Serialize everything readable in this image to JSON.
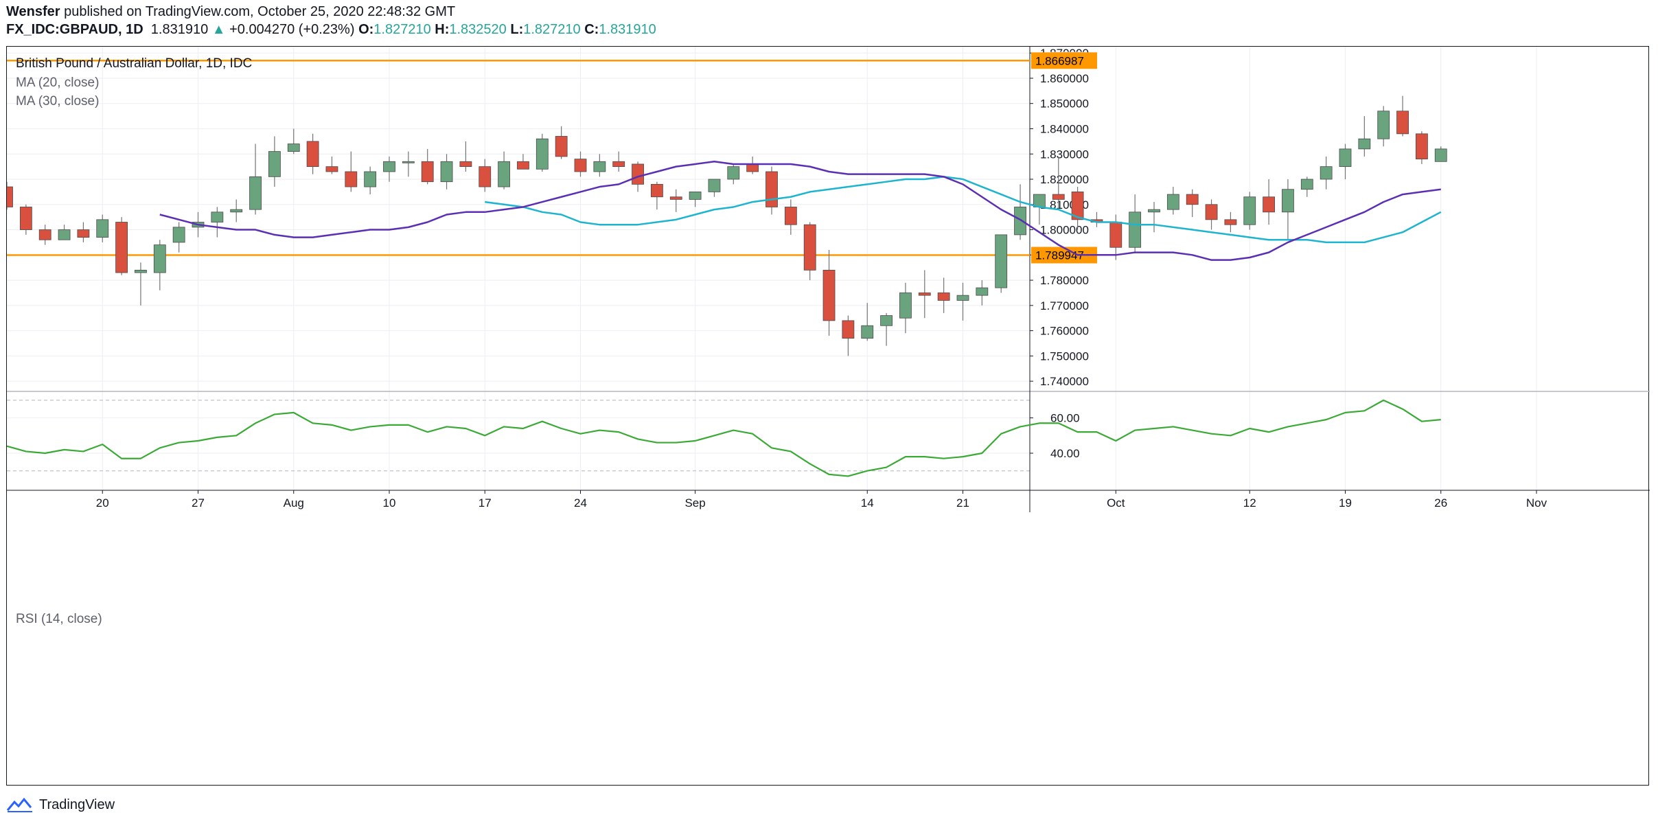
{
  "header": {
    "author": "Wensfer",
    "published_text": "published on TradingView.com, October 25, 2020 22:48:32 GMT",
    "symbol": "FX_IDC:GBPAUD, 1D",
    "last": "1.831910",
    "change": "+0.004270 (+0.23%)",
    "o_label": "O:",
    "o_value": "1.827210",
    "h_label": "H:",
    "h_value": "1.832520",
    "l_label": "L:",
    "l_value": "1.827210",
    "c_label": "C:",
    "c_value": "1.831910"
  },
  "legend": {
    "title": "British Pound / Australian Dollar, 1D, IDC",
    "ma20": "MA (20, close)",
    "ma30": "MA (30, close)",
    "rsi": "RSI (14, close)"
  },
  "footer": {
    "brand": "TradingView"
  },
  "colors": {
    "up": "#6aa47f",
    "down": "#d9503f",
    "ma20": "#5b2fb3",
    "ma30": "#1cb4cf",
    "rsi": "#3aaa35",
    "hline": "#ff9800",
    "grid": "#eceef2"
  },
  "chart_data": [
    {
      "type": "candlestick",
      "title": "British Pound / Australian Dollar, 1D, IDC",
      "currency_label": "AUD",
      "yticks": [
        "1.740000",
        "1.750000",
        "1.760000",
        "1.770000",
        "1.780000",
        "1.790000",
        "1.800000",
        "1.810000",
        "1.820000",
        "1.830000",
        "1.840000",
        "1.850000",
        "1.860000",
        "1.870000"
      ],
      "ylim": [
        1.7365,
        1.8725
      ],
      "xticks": [
        {
          "i": 5,
          "label": "20"
        },
        {
          "i": 10,
          "label": "27"
        },
        {
          "i": 15,
          "label": "Aug"
        },
        {
          "i": 20,
          "label": "10"
        },
        {
          "i": 25,
          "label": "17"
        },
        {
          "i": 30,
          "label": "24"
        },
        {
          "i": 36,
          "label": "Sep"
        },
        {
          "i": 45,
          "label": "14"
        },
        {
          "i": 50,
          "label": "21"
        },
        {
          "i": 58,
          "label": "Oct"
        },
        {
          "i": 65,
          "label": "12"
        },
        {
          "i": 70,
          "label": "19"
        },
        {
          "i": 75,
          "label": "26"
        },
        {
          "i": 80,
          "label": "Nov"
        }
      ],
      "horizontal_lines": [
        {
          "value": 1.866987,
          "label": "1.866987"
        },
        {
          "value": 1.789947,
          "label": "1.789947"
        }
      ],
      "candles": [
        [
          1.817,
          1.819,
          1.808,
          1.809
        ],
        [
          1.809,
          1.81,
          1.798,
          1.8
        ],
        [
          1.8,
          1.802,
          1.794,
          1.796
        ],
        [
          1.796,
          1.802,
          1.796,
          1.8
        ],
        [
          1.8,
          1.803,
          1.795,
          1.797
        ],
        [
          1.797,
          1.806,
          1.795,
          1.804
        ],
        [
          1.803,
          1.805,
          1.782,
          1.783
        ],
        [
          1.783,
          1.787,
          1.77,
          1.784
        ],
        [
          1.783,
          1.796,
          1.776,
          1.794
        ],
        [
          1.795,
          1.803,
          1.791,
          1.801
        ],
        [
          1.801,
          1.807,
          1.797,
          1.803
        ],
        [
          1.803,
          1.809,
          1.797,
          1.807
        ],
        [
          1.807,
          1.812,
          1.803,
          1.808
        ],
        [
          1.808,
          1.834,
          1.806,
          1.821
        ],
        [
          1.821,
          1.837,
          1.817,
          1.831
        ],
        [
          1.831,
          1.84,
          1.83,
          1.834
        ],
        [
          1.835,
          1.838,
          1.822,
          1.825
        ],
        [
          1.825,
          1.829,
          1.822,
          1.823
        ],
        [
          1.823,
          1.831,
          1.815,
          1.817
        ],
        [
          1.817,
          1.825,
          1.814,
          1.823
        ],
        [
          1.823,
          1.829,
          1.819,
          1.827
        ],
        [
          1.827,
          1.831,
          1.821,
          1.827
        ],
        [
          1.827,
          1.832,
          1.818,
          1.819
        ],
        [
          1.819,
          1.83,
          1.816,
          1.827
        ],
        [
          1.827,
          1.835,
          1.823,
          1.825
        ],
        [
          1.825,
          1.828,
          1.815,
          1.817
        ],
        [
          1.817,
          1.831,
          1.816,
          1.827
        ],
        [
          1.827,
          1.83,
          1.824,
          1.824
        ],
        [
          1.824,
          1.838,
          1.823,
          1.836
        ],
        [
          1.837,
          1.841,
          1.828,
          1.829
        ],
        [
          1.828,
          1.831,
          1.821,
          1.823
        ],
        [
          1.823,
          1.83,
          1.821,
          1.827
        ],
        [
          1.827,
          1.831,
          1.823,
          1.825
        ],
        [
          1.826,
          1.827,
          1.815,
          1.818
        ],
        [
          1.818,
          1.819,
          1.808,
          1.813
        ],
        [
          1.813,
          1.816,
          1.807,
          1.812
        ],
        [
          1.812,
          1.815,
          1.809,
          1.815
        ],
        [
          1.815,
          1.82,
          1.813,
          1.82
        ],
        [
          1.82,
          1.826,
          1.818,
          1.825
        ],
        [
          1.826,
          1.829,
          1.822,
          1.823
        ],
        [
          1.823,
          1.825,
          1.806,
          1.809
        ],
        [
          1.809,
          1.812,
          1.798,
          1.802
        ],
        [
          1.802,
          1.803,
          1.78,
          1.784
        ],
        [
          1.784,
          1.792,
          1.758,
          1.764
        ],
        [
          1.764,
          1.766,
          1.75,
          1.757
        ],
        [
          1.757,
          1.771,
          1.756,
          1.762
        ],
        [
          1.762,
          1.767,
          1.754,
          1.766
        ],
        [
          1.765,
          1.779,
          1.759,
          1.775
        ],
        [
          1.775,
          1.784,
          1.765,
          1.774
        ],
        [
          1.775,
          1.781,
          1.767,
          1.772
        ],
        [
          1.772,
          1.779,
          1.764,
          1.774
        ],
        [
          1.774,
          1.78,
          1.77,
          1.777
        ],
        [
          1.777,
          1.797,
          1.775,
          1.798
        ],
        [
          1.798,
          1.818,
          1.796,
          1.809
        ],
        [
          1.809,
          1.814,
          1.802,
          1.814
        ],
        [
          1.814,
          1.829,
          1.808,
          1.812
        ],
        [
          1.815,
          1.817,
          1.8,
          1.804
        ],
        [
          1.804,
          1.807,
          1.801,
          1.803
        ],
        [
          1.803,
          1.806,
          1.788,
          1.793
        ],
        [
          1.793,
          1.814,
          1.791,
          1.807
        ],
        [
          1.807,
          1.811,
          1.799,
          1.808
        ],
        [
          1.808,
          1.817,
          1.806,
          1.814
        ],
        [
          1.814,
          1.816,
          1.805,
          1.81
        ],
        [
          1.81,
          1.812,
          1.8,
          1.804
        ],
        [
          1.804,
          1.807,
          1.799,
          1.802
        ],
        [
          1.802,
          1.815,
          1.8,
          1.813
        ],
        [
          1.813,
          1.82,
          1.802,
          1.807
        ],
        [
          1.807,
          1.82,
          1.796,
          1.816
        ],
        [
          1.816,
          1.821,
          1.813,
          1.82
        ],
        [
          1.82,
          1.829,
          1.816,
          1.825
        ],
        [
          1.825,
          1.834,
          1.82,
          1.832
        ],
        [
          1.832,
          1.845,
          1.829,
          1.836
        ],
        [
          1.836,
          1.849,
          1.833,
          1.847
        ],
        [
          1.847,
          1.853,
          1.837,
          1.838
        ],
        [
          1.838,
          1.839,
          1.826,
          1.828
        ],
        [
          1.827,
          1.833,
          1.827,
          1.832
        ]
      ],
      "ma20": [
        1.806,
        1.804,
        1.802,
        1.801,
        1.8,
        1.8,
        1.798,
        1.797,
        1.797,
        1.798,
        1.799,
        1.8,
        1.8,
        1.801,
        1.803,
        1.806,
        1.807,
        1.807,
        1.808,
        1.809,
        1.811,
        1.813,
        1.815,
        1.817,
        1.818,
        1.821,
        1.823,
        1.825,
        1.826,
        1.827,
        1.826,
        1.826,
        1.826,
        1.826,
        1.825,
        1.823,
        1.822,
        1.822,
        1.822,
        1.822,
        1.822,
        1.821,
        1.818,
        1.813,
        1.808,
        1.804,
        1.799,
        1.794,
        1.79,
        1.79,
        1.79,
        1.791,
        1.791,
        1.791,
        1.79,
        1.788,
        1.788,
        1.789,
        1.791,
        1.795,
        1.798,
        1.801,
        1.804,
        1.807,
        1.811,
        1.814,
        1.815,
        1.816
      ],
      "ma30": [
        1.811,
        1.81,
        1.809,
        1.807,
        1.806,
        1.803,
        1.802,
        1.802,
        1.802,
        1.803,
        1.804,
        1.806,
        1.808,
        1.809,
        1.811,
        1.812,
        1.813,
        1.815,
        1.816,
        1.817,
        1.818,
        1.819,
        1.82,
        1.82,
        1.821,
        1.82,
        1.817,
        1.814,
        1.811,
        1.809,
        1.808,
        1.805,
        1.803,
        1.803,
        1.802,
        1.802,
        1.801,
        1.8,
        1.799,
        1.798,
        1.797,
        1.796,
        1.796,
        1.796,
        1.795,
        1.795,
        1.795,
        1.797,
        1.799,
        1.803,
        1.807
      ]
    },
    {
      "type": "line",
      "title": "RSI (14, close)",
      "yticks": [
        "40.00",
        "60.00"
      ],
      "ylim": [
        19,
        75
      ],
      "bands": [
        30,
        70
      ],
      "values": [
        44,
        41,
        40,
        42,
        41,
        45,
        37,
        37,
        43,
        46,
        47,
        49,
        50,
        57,
        62,
        63,
        57,
        56,
        53,
        55,
        56,
        56,
        52,
        55,
        54,
        50,
        55,
        54,
        58,
        54,
        51,
        53,
        52,
        48,
        46,
        46,
        47,
        50,
        53,
        51,
        43,
        41,
        34,
        28,
        27,
        30,
        32,
        38,
        38,
        37,
        38,
        40,
        51,
        55,
        57,
        57,
        52,
        52,
        47,
        53,
        54,
        55,
        53,
        51,
        50,
        54,
        52,
        55,
        57,
        59,
        63,
        64,
        70,
        65,
        58,
        59
      ]
    }
  ]
}
